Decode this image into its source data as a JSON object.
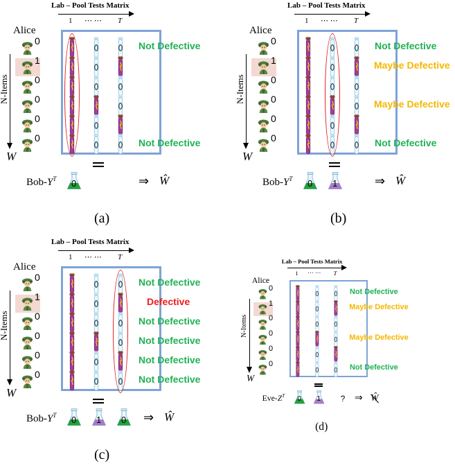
{
  "matrix_title": "Lab –  Pool Tests Matrix",
  "col_first": "1",
  "col_dots": "⋯ ⋯",
  "col_last": "T",
  "sender": "Alice",
  "axis_label": "N-Items",
  "w_label": "W",
  "arrow_symbol": "⇒",
  "w_hat": "Ŵ",
  "colors": {
    "not_defective": "#1fb254",
    "maybe_defective": "#f5b700",
    "defective": "#ee1c1c",
    "matrix_border": "#7ea3d6",
    "highlight_row": "#f3d9d2",
    "ellipse": "#e2221f"
  },
  "item_bits": [
    "0",
    "1",
    "0",
    "0",
    "0",
    "0"
  ],
  "panels": [
    {
      "caption": "(a)",
      "receiver": "Bob-",
      "receiver_var": "Y",
      "tests": [
        "0"
      ],
      "question": "",
      "statuses": [
        {
          "row": 0,
          "text": "Not Defective",
          "kind": "not_defective"
        },
        {
          "row": 5,
          "text": "Not Defective",
          "kind": "not_defective"
        }
      ]
    },
    {
      "caption": "(b)",
      "receiver": "Bob-",
      "receiver_var": "Y",
      "tests": [
        "0",
        "1"
      ],
      "question": "",
      "statuses": [
        {
          "row": 0,
          "text": "Not Defective",
          "kind": "not_defective"
        },
        {
          "row": 1,
          "text": "Maybe Defective",
          "kind": "maybe_defective"
        },
        {
          "row": 3,
          "text": "Maybe Defective",
          "kind": "maybe_defective"
        },
        {
          "row": 5,
          "text": "Not Defective",
          "kind": "not_defective"
        }
      ]
    },
    {
      "caption": "(c)",
      "receiver": "Bob-",
      "receiver_var": "Y",
      "tests": [
        "0",
        "1",
        "0"
      ],
      "question": "",
      "statuses": [
        {
          "row": 0,
          "text": "Not Defective",
          "kind": "not_defective"
        },
        {
          "row": 1,
          "text": "Defective",
          "kind": "defective"
        },
        {
          "row": 2,
          "text": "Not Defective",
          "kind": "not_defective"
        },
        {
          "row": 3,
          "text": "Not Defective",
          "kind": "not_defective"
        },
        {
          "row": 4,
          "text": "Not Defective",
          "kind": "not_defective"
        },
        {
          "row": 5,
          "text": "Not Defective",
          "kind": "not_defective"
        }
      ]
    },
    {
      "caption": "(d)",
      "receiver": "Eve-",
      "receiver_var": "Z",
      "tests": [
        "0",
        "1"
      ],
      "question": "?",
      "statuses": [
        {
          "row": 0,
          "text": "Not Defective",
          "kind": "not_defective"
        },
        {
          "row": 1,
          "text": "Maybe Defective",
          "kind": "maybe_defective"
        },
        {
          "row": 3,
          "text": "Maybe Defective",
          "kind": "maybe_defective"
        },
        {
          "row": 5,
          "text": "Not Defective",
          "kind": "not_defective"
        }
      ]
    }
  ]
}
